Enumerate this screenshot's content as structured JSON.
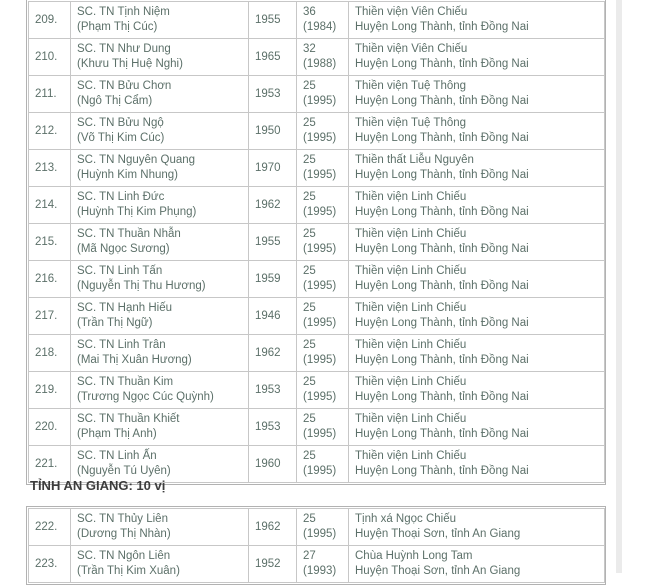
{
  "section2": {
    "heading": "TỈNH AN GIANG: 10 vị"
  },
  "table1": {
    "rows": [
      {
        "no": "209.",
        "name": "SC. TN Tịnh Niệm",
        "birth_name": "(Phạm Thị Cúc)",
        "year": "1955",
        "age": "36",
        "age_year": "(1984)",
        "temple": "Thiền viện Viên Chiếu",
        "location": "Huyện Long Thành, tỉnh Đồng Nai"
      },
      {
        "no": "210.",
        "name": "SC. TN Như Dung",
        "birth_name": "(Khưu Thị Huệ Nghi)",
        "year": "1965",
        "age": "32",
        "age_year": "(1988)",
        "temple": "Thiền viện Viên Chiếu",
        "location": "Huyện Long Thành, tỉnh Đồng Nai"
      },
      {
        "no": "211.",
        "name": "SC. TN Bửu Chơn",
        "birth_name": "(Ngô Thị Cẩm)",
        "year": "1953",
        "age": "25",
        "age_year": "(1995)",
        "temple": "Thiền viện Tuệ Thông",
        "location": "Huyện Long Thành, tỉnh Đồng Nai"
      },
      {
        "no": "212.",
        "name": "SC. TN Bửu Ngộ",
        "birth_name": "(Võ Thị Kim Cúc)",
        "year": "1950",
        "age": "25",
        "age_year": "(1995)",
        "temple": "Thiền viện Tuệ Thông",
        "location": "Huyện Long Thành, tỉnh Đồng Nai"
      },
      {
        "no": "213.",
        "name": "SC. TN Nguyên Quang",
        "birth_name": "(Huỳnh Kim Nhung)",
        "year": "1970",
        "age": "25",
        "age_year": "(1995)",
        "temple": "Thiền thất Liễu Nguyên",
        "location": "Huyện Long Thành, tỉnh Đồng Nai"
      },
      {
        "no": "214.",
        "name": "SC. TN Linh Đức",
        "birth_name": "(Huỳnh Thị Kim Phụng)",
        "year": "1962",
        "age": "25",
        "age_year": "(1995)",
        "temple": "Thiền viện Linh Chiếu",
        "location": "Huyện Long Thành, tỉnh Đồng Nai"
      },
      {
        "no": "215.",
        "name": "SC. TN Thuần Nhẫn",
        "birth_name": "(Mã Ngọc Sương)",
        "year": "1955",
        "age": "25",
        "age_year": "(1995)",
        "temple": "Thiền viện Linh Chiếu",
        "location": "Huyện Long Thành, tỉnh Đồng Nai"
      },
      {
        "no": "216.",
        "name": "SC. TN Linh Tấn",
        "birth_name": "(Nguyễn Thị Thu Hương)",
        "year": "1959",
        "age": "25",
        "age_year": "(1995)",
        "temple": "Thiền viện Linh Chiếu",
        "location": "Huyện Long Thành, tỉnh Đồng Nai"
      },
      {
        "no": "217.",
        "name": "SC. TN Hạnh Hiếu",
        "birth_name": "(Trần Thị Ngữ)",
        "year": "1946",
        "age": "25",
        "age_year": "(1995)",
        "temple": "Thiền viện Linh Chiếu",
        "location": "Huyện Long Thành, tỉnh Đồng Nai"
      },
      {
        "no": "218.",
        "name": "SC. TN Linh Trân",
        "birth_name": "(Mai Thị Xuân Hương)",
        "year": "1962",
        "age": "25",
        "age_year": "(1995)",
        "temple": "Thiền viện Linh Chiếu",
        "location": "Huyện Long Thành, tỉnh Đồng Nai"
      },
      {
        "no": "219.",
        "name": "SC. TN Thuần Kim",
        "birth_name": "(Trương Ngọc Cúc Quỳnh)",
        "year": "1953",
        "age": "25",
        "age_year": "(1995)",
        "temple": "Thiền viện Linh Chiếu",
        "location": "Huyện Long Thành, tỉnh Đồng Nai"
      },
      {
        "no": "220.",
        "name": "SC. TN Thuần Khiết",
        "birth_name": "(Phạm Thị Anh)",
        "year": "1953",
        "age": "25",
        "age_year": "(1995)",
        "temple": "Thiền viện Linh Chiếu",
        "location": "Huyện Long Thành, tỉnh Đồng Nai"
      },
      {
        "no": "221.",
        "name": "SC. TN Linh Ấn",
        "birth_name": "(Nguyễn Tú Uyên)",
        "year": "1960",
        "age": "25",
        "age_year": "(1995)",
        "temple": "Thiền viện Linh Chiếu",
        "location": "Huyện Long Thành, tỉnh Đồng Nai"
      }
    ]
  },
  "table2": {
    "rows": [
      {
        "no": "222.",
        "name": "SC. TN Thủy Liên",
        "birth_name": "(Dương Thị Nhàn)",
        "year": "1962",
        "age": "25",
        "age_year": "(1995)",
        "temple": "Tịnh xá Ngọc Chiếu",
        "location": "Huyện Thoại Sơn, tỉnh An Giang"
      },
      {
        "no": "223.",
        "name": "SC. TN Ngôn Liên",
        "birth_name": "(Trần Thị Kim Xuân)",
        "year": "1952",
        "age": "27",
        "age_year": "(1993)",
        "temple": "Chùa Huỳnh Long Tam",
        "location": "Huyện Thoại Sơn, tỉnh An Giang"
      }
    ]
  }
}
